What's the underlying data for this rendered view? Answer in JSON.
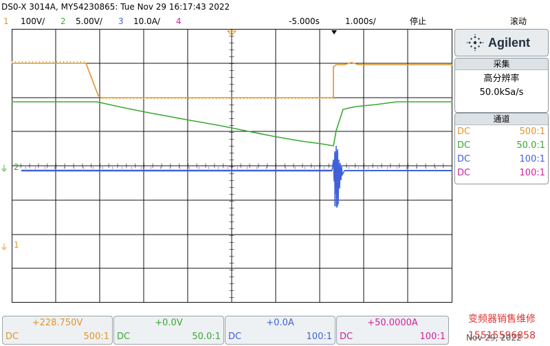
{
  "title": "DS0-X 3014A, MY54230865: Tue Nov 29 16:17:43 2022",
  "colors": {
    "ch1": "#e0952a",
    "ch2": "#38a832",
    "ch3": "#4060d8",
    "ch4": "#d020a0",
    "grid": "#101010",
    "panel_border": "#8e969c"
  },
  "status_bar": {
    "ch1_num": "1",
    "ch1_scale": "100V/",
    "ch2_num": "2",
    "ch2_scale": "5.00V/",
    "ch3_num": "3",
    "ch3_scale": "10.0A/",
    "ch4_num": "4",
    "time_offset": "-5.000s",
    "time_scale": "1.000s/",
    "run_state": "停止",
    "mode": "滚动"
  },
  "screen": {
    "ch1_marker": "1",
    "ch2_marker": "2",
    "ch3_marker": "3"
  },
  "right_panel": {
    "brand": "Agilent",
    "brand_icon": "agilent-spark-icon",
    "acquisition_header": "采集",
    "acquisition_mode": "高分辨率",
    "sample_rate": "50.0kSa/s",
    "channels_header": "通道",
    "channels": [
      {
        "coupling": "DC",
        "probe": "500:1"
      },
      {
        "coupling": "DC",
        "probe": "50.0:1"
      },
      {
        "coupling": "DC",
        "probe": "100:1"
      },
      {
        "coupling": "DC",
        "probe": "100:1"
      }
    ]
  },
  "bottom_bar": [
    {
      "offset": "+228.750V",
      "coupling": "DC",
      "probe": "500:1"
    },
    {
      "offset": "+0.0V",
      "coupling": "DC",
      "probe": "50.0:1"
    },
    {
      "offset": "+0.0A",
      "coupling": "DC",
      "probe": "100:1"
    },
    {
      "offset": "+50.0000A",
      "coupling": "DC",
      "probe": "100:1"
    }
  ],
  "watermark": {
    "line1": "变频器销售维修",
    "line2": "15515596858",
    "date": "Nov 29, 2022"
  }
}
